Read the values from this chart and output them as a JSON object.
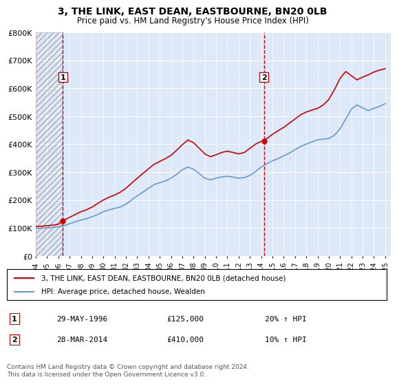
{
  "title": "3, THE LINK, EAST DEAN, EASTBOURNE, BN20 0LB",
  "subtitle": "Price paid vs. HM Land Registry's House Price Index (HPI)",
  "ylabel": "",
  "sale_dates": [
    1996.41,
    2014.24
  ],
  "sale_prices": [
    125000,
    410000
  ],
  "sale_labels": [
    "1",
    "2"
  ],
  "sale_date_strs": [
    "29-MAY-1996",
    "28-MAR-2014"
  ],
  "sale_price_strs": [
    "£125,000",
    "£410,000"
  ],
  "sale_pct_strs": [
    "20% ↑ HPI",
    "10% ↑ HPI"
  ],
  "ylim": [
    0,
    800000
  ],
  "xlim": [
    1994,
    2025.5
  ],
  "yticks": [
    0,
    100000,
    200000,
    300000,
    400000,
    500000,
    600000,
    700000,
    800000
  ],
  "ytick_labels": [
    "£0",
    "£100K",
    "£200K",
    "£300K",
    "£400K",
    "£500K",
    "£600K",
    "£700K",
    "£800K"
  ],
  "xticks": [
    1994,
    1995,
    1996,
    1997,
    1998,
    1999,
    2000,
    2001,
    2002,
    2003,
    2004,
    2005,
    2006,
    2007,
    2008,
    2009,
    2010,
    2011,
    2012,
    2013,
    2014,
    2015,
    2016,
    2017,
    2018,
    2019,
    2020,
    2021,
    2022,
    2023,
    2024,
    2025
  ],
  "hpi_color": "#6699cc",
  "price_color": "#cc0000",
  "vline_color": "#cc0000",
  "hatch_color": "#cccccc",
  "bg_color": "#dde8f8",
  "grid_color": "#ffffff",
  "legend_line1": "3, THE LINK, EAST DEAN, EASTBOURNE, BN20 0LB (detached house)",
  "legend_line2": "HPI: Average price, detached house, Wealden",
  "footnote": "Contains HM Land Registry data © Crown copyright and database right 2024.\nThis data is licensed under the Open Government Licence v3.0.",
  "hpi_x": [
    1994,
    1994.5,
    1995,
    1995.5,
    1996,
    1996.5,
    1997,
    1997.5,
    1998,
    1998.5,
    1999,
    1999.5,
    2000,
    2000.5,
    2001,
    2001.5,
    2002,
    2002.5,
    2003,
    2003.5,
    2004,
    2004.5,
    2005,
    2005.5,
    2006,
    2006.5,
    2007,
    2007.5,
    2008,
    2008.5,
    2009,
    2009.5,
    2010,
    2010.5,
    2011,
    2011.5,
    2012,
    2012.5,
    2013,
    2013.5,
    2014,
    2014.5,
    2015,
    2015.5,
    2016,
    2016.5,
    2017,
    2017.5,
    2018,
    2018.5,
    2019,
    2019.5,
    2020,
    2020.5,
    2021,
    2021.5,
    2022,
    2022.5,
    2023,
    2023.5,
    2024,
    2024.5,
    2025
  ],
  "hpi_y": [
    98000,
    99000,
    100000,
    102000,
    104000,
    108000,
    115000,
    122000,
    128000,
    133000,
    140000,
    148000,
    158000,
    165000,
    170000,
    175000,
    185000,
    200000,
    215000,
    228000,
    242000,
    255000,
    262000,
    268000,
    278000,
    292000,
    308000,
    318000,
    310000,
    295000,
    278000,
    272000,
    278000,
    283000,
    285000,
    282000,
    278000,
    280000,
    288000,
    302000,
    318000,
    330000,
    340000,
    348000,
    358000,
    368000,
    380000,
    392000,
    400000,
    408000,
    415000,
    418000,
    420000,
    432000,
    455000,
    490000,
    525000,
    540000,
    530000,
    520000,
    528000,
    535000,
    545000
  ],
  "price_x": [
    1994,
    1994.5,
    1995,
    1995.5,
    1996,
    1996.41,
    1996.5,
    1997,
    1997.5,
    1998,
    1998.5,
    1999,
    1999.5,
    2000,
    2000.5,
    2001,
    2001.5,
    2002,
    2002.5,
    2003,
    2003.5,
    2004,
    2004.5,
    2005,
    2005.5,
    2006,
    2006.5,
    2007,
    2007.5,
    2008,
    2008.5,
    2009,
    2009.5,
    2010,
    2010.5,
    2011,
    2011.5,
    2012,
    2012.5,
    2013,
    2013.5,
    2014,
    2014.24,
    2014.5,
    2015,
    2015.5,
    2016,
    2016.5,
    2017,
    2017.5,
    2018,
    2018.5,
    2019,
    2019.5,
    2020,
    2020.5,
    2021,
    2021.5,
    2022,
    2022.5,
    2023,
    2023.5,
    2024,
    2024.5,
    2025
  ],
  "price_y": [
    105000,
    106000,
    108000,
    110000,
    113000,
    125000,
    128000,
    138000,
    148000,
    158000,
    165000,
    175000,
    188000,
    200000,
    210000,
    218000,
    228000,
    242000,
    260000,
    278000,
    295000,
    312000,
    328000,
    338000,
    348000,
    360000,
    378000,
    398000,
    415000,
    405000,
    385000,
    365000,
    355000,
    362000,
    370000,
    375000,
    370000,
    365000,
    370000,
    385000,
    400000,
    410000,
    410000,
    420000,
    435000,
    448000,
    460000,
    475000,
    490000,
    505000,
    515000,
    522000,
    528000,
    540000,
    560000,
    595000,
    635000,
    660000,
    645000,
    630000,
    640000,
    648000,
    658000,
    665000,
    670000
  ]
}
